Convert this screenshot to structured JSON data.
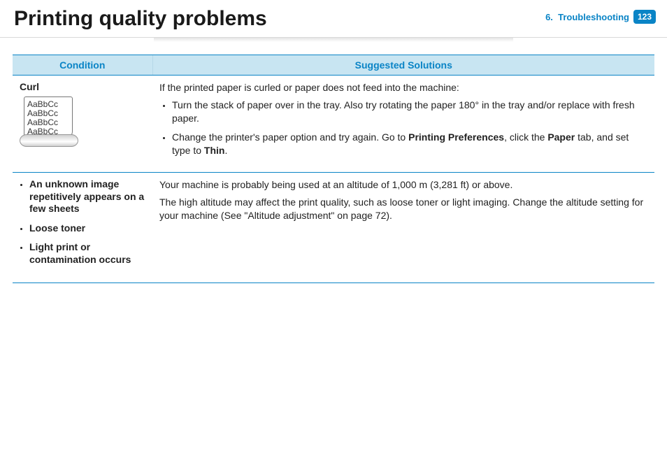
{
  "header": {
    "title": "Printing quality problems",
    "chapter_num": "6.",
    "chapter_label": "Troubleshooting",
    "page_number": "123"
  },
  "table": {
    "head": {
      "condition": "Condition",
      "solutions": "Suggested Solutions"
    },
    "row1": {
      "condition_title": "Curl",
      "sample_lines": [
        "AaBbCc",
        "AaBbCc",
        "AaBbCc",
        "AaBbCc"
      ],
      "intro": "If the printed paper is curled or paper does not feed into the machine:",
      "bullets": [
        {
          "text": "Turn the stack of paper over in the tray. Also try rotating the paper 180° in the tray and/or replace with fresh paper."
        },
        {
          "pre": "Change the printer's paper option and try again. Go to ",
          "b1": "Printing Preferences",
          "mid1": ", click the ",
          "b2": "Paper",
          "mid2": " tab, and set type to ",
          "b3": "Thin",
          "post": "."
        }
      ]
    },
    "row2": {
      "conditions": [
        "An unknown image repetitively appears on a few sheets",
        "Loose toner",
        "Light print  or contamination occurs"
      ],
      "p1": "Your machine is probably being used at an altitude of 1,000 m (3,281 ft) or above.",
      "p2": "The high altitude may affect the print quality, such as loose toner or light imaging. Change the altitude setting for your machine (See \"Altitude adjustment\" on page 72)."
    }
  }
}
